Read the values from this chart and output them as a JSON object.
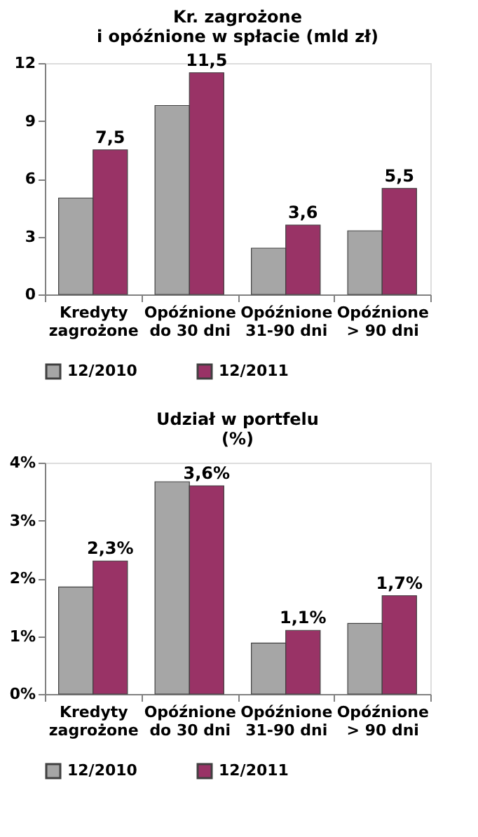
{
  "chart_data": [
    {
      "type": "bar",
      "title": "Kr. zagrożone\ni opóźnione  w spłacie (mld zł)",
      "categories": [
        "Kredyty\nzagrożone",
        "Opóźnione\ndo 30 dni",
        "Opóźnione\n31-90 dni",
        "Opóźnione\n> 90 dni"
      ],
      "series": [
        {
          "name": "12/2010",
          "color": "#a6a6a6",
          "values": [
            5.0,
            9.8,
            2.4,
            3.3
          ]
        },
        {
          "name": "12/2011",
          "color": "#993366",
          "values": [
            7.5,
            11.5,
            3.6,
            5.5
          ],
          "value_labels": [
            "7,5",
            "11,5",
            "3,6",
            "5,5"
          ]
        }
      ],
      "ylim": [
        0,
        12
      ],
      "yticks": [
        0,
        3,
        6,
        9,
        12
      ],
      "legend": "bottom",
      "grid": false
    },
    {
      "type": "bar",
      "title": "Udział  w portfelu\n(%)",
      "categories": [
        "Kredyty\nzagrożone",
        "Opóźnione\ndo 30 dni",
        "Opóźnione\n31-90 dni",
        "Opóźnione\n> 90 dni"
      ],
      "series": [
        {
          "name": "12/2010",
          "color": "#a6a6a6",
          "values": [
            1.85,
            3.67,
            0.88,
            1.22
          ]
        },
        {
          "name": "12/2011",
          "color": "#993366",
          "values": [
            2.3,
            3.6,
            1.1,
            1.7
          ],
          "value_labels": [
            "2,3%",
            "3,6%",
            "1,1%",
            "1,7%"
          ]
        }
      ],
      "ylim": [
        0,
        4
      ],
      "yticks": [
        {
          "value": 0,
          "label": "0%"
        },
        {
          "value": 1,
          "label": "1%"
        },
        {
          "value": 2,
          "label": "2%"
        },
        {
          "value": 3,
          "label": "3%"
        },
        {
          "value": 4,
          "label": "4%"
        }
      ],
      "legend": "bottom",
      "grid": false
    }
  ]
}
